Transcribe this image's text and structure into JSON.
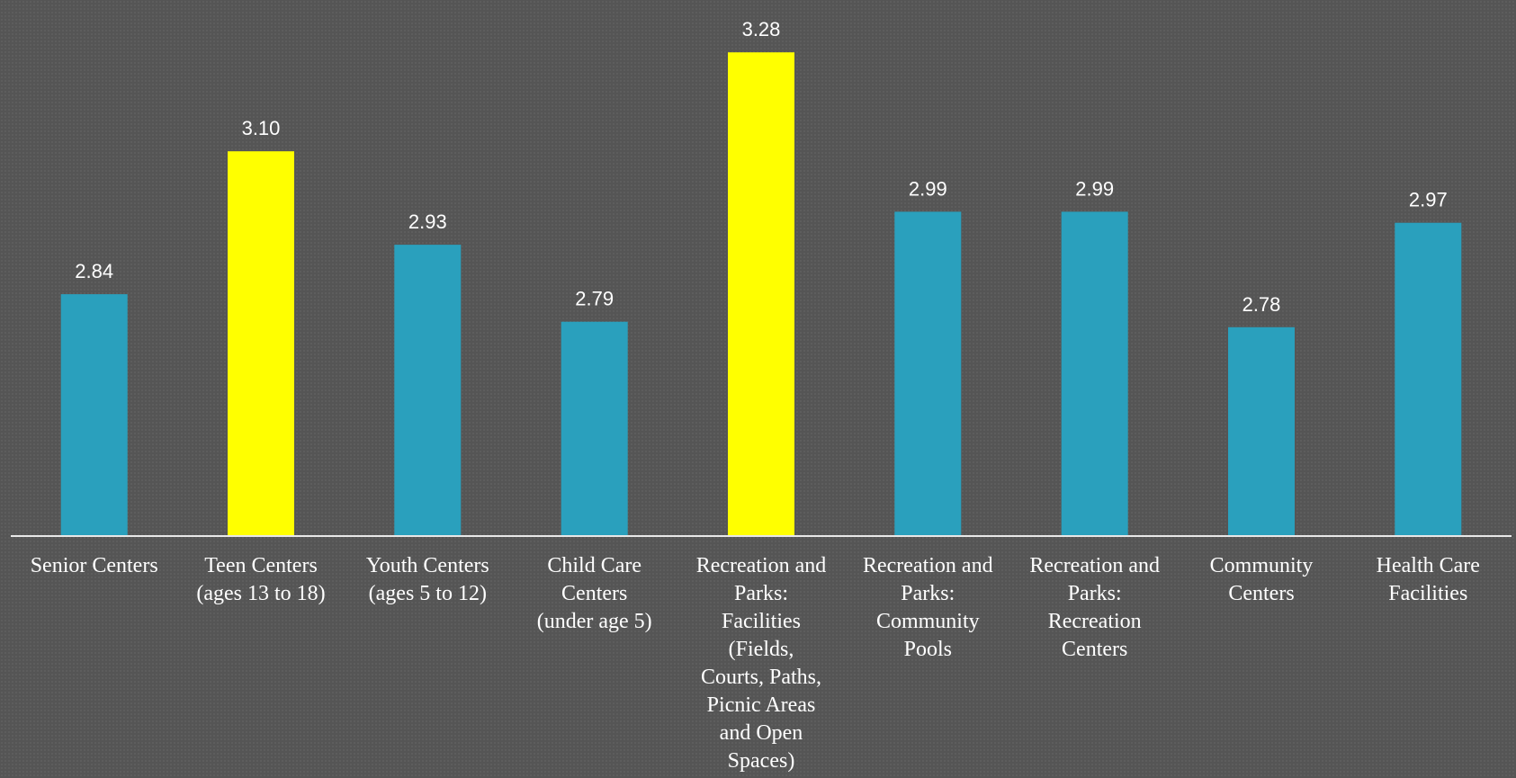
{
  "chart_data": {
    "type": "bar",
    "title": "",
    "xlabel": "",
    "ylabel": "",
    "categories": [
      "Senior Centers",
      "Teen Centers\n(ages 13 to 18)",
      "Youth Centers\n(ages 5 to 12)",
      "Child Care\nCenters\n(under age 5)",
      "Recreation and\nParks:\nFacilities\n(Fields,\nCourts, Paths,\nPicnic Areas\nand Open\nSpaces)",
      "Recreation and\nParks:\nCommunity\nPools",
      "Recreation and\nParks:\nRecreation\nCenters",
      "Community\nCenters",
      "Health Care\nFacilities"
    ],
    "values": [
      2.84,
      3.1,
      2.93,
      2.79,
      3.28,
      2.99,
      2.99,
      2.78,
      2.97
    ],
    "data_labels": [
      "2.84",
      "3.10",
      "2.93",
      "2.79",
      "3.28",
      "2.99",
      "2.99",
      "2.78",
      "2.97"
    ],
    "highlighted": [
      false,
      true,
      false,
      false,
      true,
      false,
      false,
      false,
      false
    ],
    "ylim": [
      2.4,
      3.3
    ],
    "grid": false,
    "legend": "none",
    "colors": {
      "bar": "#2aa0bd",
      "highlight": "#ffff00",
      "axis": "#e8e8e8",
      "text": "#ffffff",
      "background": "#555555"
    }
  }
}
